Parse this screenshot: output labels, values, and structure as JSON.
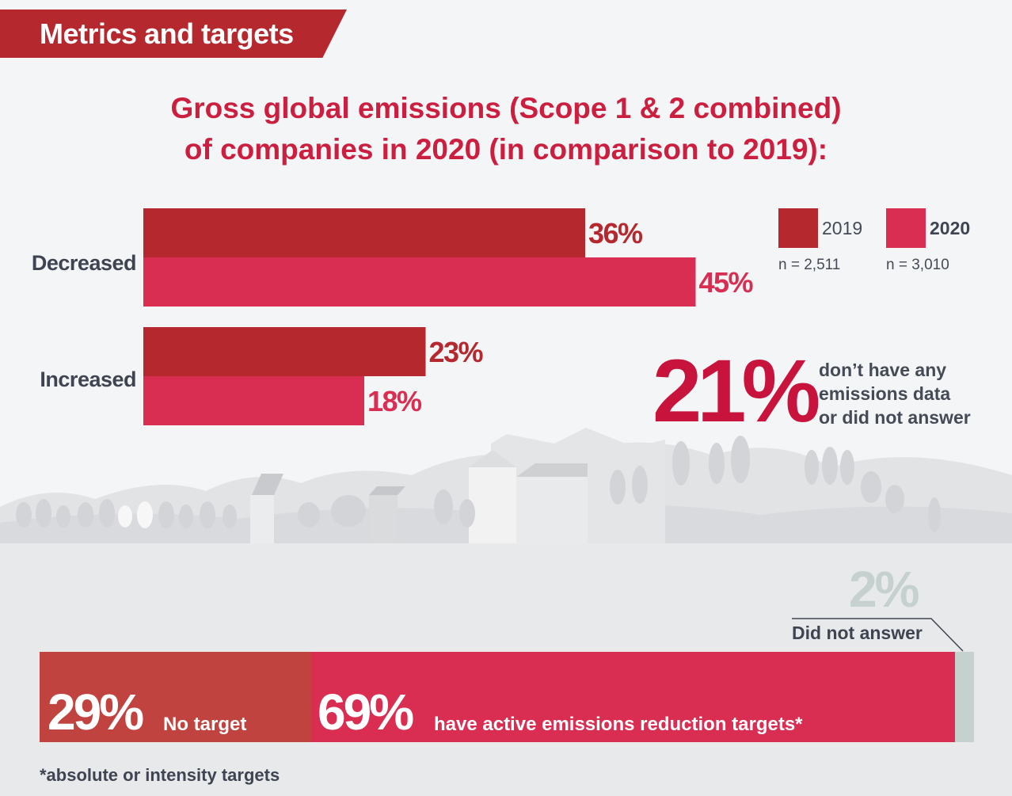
{
  "header": {
    "section_title": "Metrics and targets"
  },
  "chart_data": [
    {
      "type": "bar",
      "orientation": "horizontal",
      "title": "Gross global emissions (Scope 1 & 2 combined) of companies in 2020 (in comparison to 2019):",
      "title_lines": [
        "Gross global emissions (Scope 1 & 2 combined)",
        "of companies in 2020 (in comparison to 2019):"
      ],
      "categories": [
        "Decreased",
        "Increased"
      ],
      "series": [
        {
          "name": "2019",
          "n_label": "n = 2,511",
          "color": "#b5282e",
          "values": [
            36,
            23
          ],
          "value_labels": [
            "36%",
            "23%"
          ]
        },
        {
          "name": "2020",
          "n_label": "n = 3,010",
          "color": "#d92d51",
          "values": [
            45,
            18
          ],
          "value_labels": [
            "45%",
            "18%"
          ]
        }
      ],
      "legend_position": "top-right",
      "unit": "%",
      "grid": false,
      "xlim": [
        0,
        100
      ]
    },
    {
      "type": "bar",
      "orientation": "stacked-horizontal",
      "segments": [
        {
          "value": 29,
          "value_label": "29%",
          "label": "No target",
          "color": "#c1433f"
        },
        {
          "value": 69,
          "value_label": "69%",
          "label": "have active emissions reduction targets*",
          "color": "#d92d51"
        },
        {
          "value": 2,
          "value_label": "2%",
          "label": "Did not answer",
          "color": "#c6d1cf"
        }
      ],
      "footnote": "*absolute or intensity targets"
    }
  ],
  "callout": {
    "value_label": "21%",
    "value": 21,
    "text_lines": [
      "don’t have any",
      "emissions data",
      "or did not answer"
    ]
  },
  "colors": {
    "banner": "#b5282e",
    "title": "#cc1f3f",
    "bar_2019": "#b5282e",
    "bar_2020": "#d92d51",
    "callout": "#c8133c"
  }
}
